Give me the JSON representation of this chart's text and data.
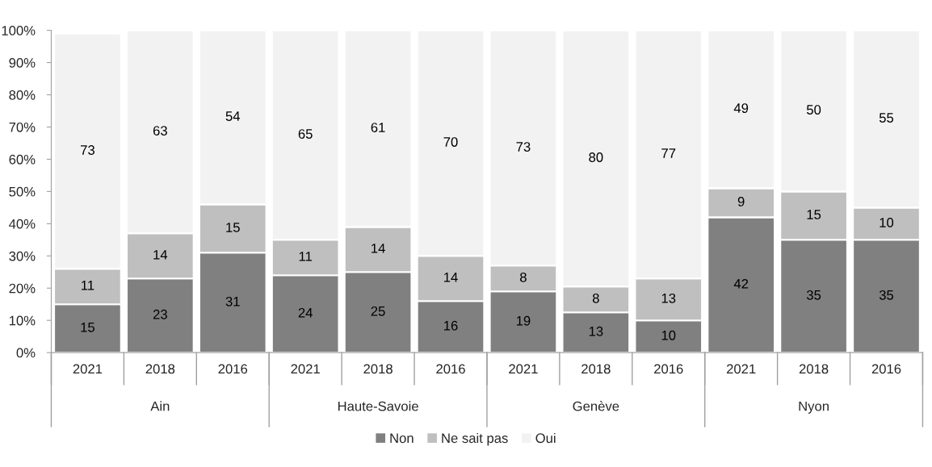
{
  "chart_data": {
    "type": "bar",
    "stacked": true,
    "categories": [
      "2021",
      "2018",
      "2016",
      "2021",
      "2018",
      "2016",
      "2021",
      "2018",
      "2016",
      "2021",
      "2018",
      "2016"
    ],
    "annotations": [
      "Ain",
      "Haute-Savoie",
      "Genève",
      "Nyon"
    ],
    "series": [
      {
        "name": "Non",
        "color": "#808080",
        "values": [
          15,
          23,
          31,
          24,
          25,
          16,
          19,
          12.5,
          10,
          42,
          35,
          35
        ],
        "value_labels": [
          "15",
          "23",
          "31",
          "24",
          "25",
          "16",
          "19",
          "13",
          "10",
          "42",
          "35",
          "35"
        ]
      },
      {
        "name": "Ne sait pas",
        "color": "#bfbfbf",
        "values": [
          11,
          14,
          15,
          11,
          14,
          14,
          8,
          8,
          13,
          9,
          15,
          10
        ],
        "value_labels": [
          "11",
          "14",
          "15",
          "11",
          "14",
          "14",
          "8",
          "8",
          "13",
          "9",
          "15",
          "10"
        ]
      },
      {
        "name": "Oui",
        "color": "#f2f2f2",
        "values": [
          73,
          63,
          54,
          65,
          61,
          70,
          73,
          79.5,
          77,
          49,
          50,
          55
        ],
        "value_labels": [
          "73",
          "63",
          "54",
          "65",
          "61",
          "70",
          "73",
          "80",
          "77",
          "49",
          "50",
          "55"
        ]
      }
    ],
    "ylim": [
      0,
      100
    ],
    "yticks": [
      {
        "value": 0,
        "label": "0%"
      },
      {
        "value": 10,
        "label": "10%"
      },
      {
        "value": 20,
        "label": "20%"
      },
      {
        "value": 30,
        "label": "30%"
      },
      {
        "value": 40,
        "label": "40%"
      },
      {
        "value": 50,
        "label": "50%"
      },
      {
        "value": 60,
        "label": "60%"
      },
      {
        "value": 70,
        "label": "70%"
      },
      {
        "value": 80,
        "label": "80%"
      },
      {
        "value": 90,
        "label": "90%"
      },
      {
        "value": 100,
        "label": "100%"
      }
    ],
    "grid": false,
    "legend": "bottom"
  }
}
